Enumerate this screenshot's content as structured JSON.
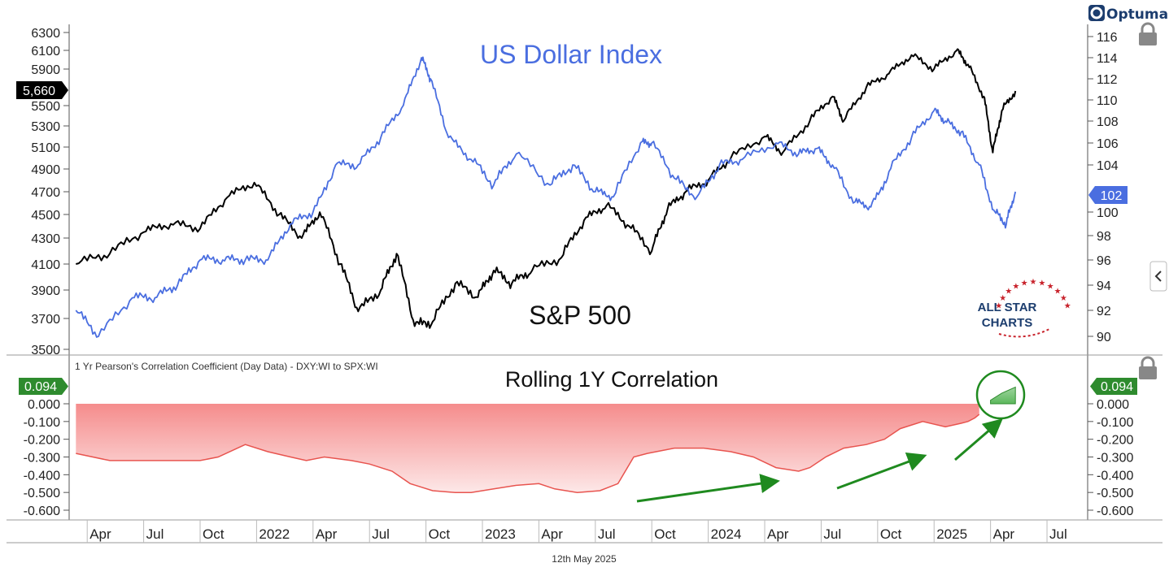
{
  "brand": {
    "name": "Optuma",
    "watermark": [
      "ALL STAR",
      "CHARTS"
    ]
  },
  "footer": {
    "date": "12th May 2025"
  },
  "colors": {
    "spx": "#000000",
    "dxy": "#4a6ee0",
    "corr_fill": "#f58c8c",
    "corr_line": "#e8544f",
    "positive": "#2e8b2e",
    "arrow": "#1f8a1f"
  },
  "icons": {
    "lock": "lock-icon",
    "collapse": "chevron-left-icon"
  },
  "x_axis": {
    "labels": [
      "Apr",
      "Jul",
      "Oct",
      "2022",
      "Apr",
      "Jul",
      "Oct",
      "2023",
      "Apr",
      "Jul",
      "Oct",
      "2024",
      "Apr",
      "Jul",
      "Oct",
      "2025",
      "Apr",
      "Jul"
    ],
    "positions_decimal_year": [
      2021.25,
      2021.5,
      2021.75,
      2022.0,
      2022.25,
      2022.5,
      2022.75,
      2023.0,
      2023.25,
      2023.5,
      2023.75,
      2024.0,
      2024.25,
      2024.5,
      2024.75,
      2025.0,
      2025.25,
      2025.5
    ]
  },
  "top_panel": {
    "left_axis": {
      "label": "S&P 500",
      "ticks": [
        "3500",
        "3700",
        "3900",
        "4100",
        "4300",
        "4500",
        "4700",
        "4900",
        "5100",
        "5300",
        "5500",
        "5900",
        "6100",
        "6300"
      ],
      "current": "5,660"
    },
    "right_axis": {
      "label": "US Dollar Index",
      "ticks": [
        "90",
        "92",
        "94",
        "96",
        "98",
        "100",
        "104",
        "106",
        "108",
        "110",
        "112",
        "114",
        "116"
      ],
      "current": "102"
    }
  },
  "bottom_panel": {
    "caption": "1 Yr Pearson's Correlation Coefficient (Day Data) - DXY:WI to SPX:WI",
    "title": "Rolling 1Y Correlation",
    "ticks": [
      "0.000",
      "-0.100",
      "-0.200",
      "-0.300",
      "-0.400",
      "-0.500",
      "-0.600"
    ],
    "current": "0.094"
  },
  "chart_data": [
    {
      "type": "line",
      "title": "US Dollar Index",
      "x_unit": "decimal year",
      "series": [
        {
          "name": "S&P 500",
          "axis": "left",
          "x": [
            2021.2,
            2021.35,
            2021.5,
            2021.62,
            2021.75,
            2021.87,
            2021.99,
            2022.1,
            2022.2,
            2022.28,
            2022.37,
            2022.45,
            2022.55,
            2022.62,
            2022.7,
            2022.78,
            2022.88,
            2022.98,
            2023.05,
            2023.13,
            2023.22,
            2023.35,
            2023.45,
            2023.55,
            2023.65,
            2023.75,
            2023.82,
            2023.9,
            2024.0,
            2024.1,
            2024.25,
            2024.33,
            2024.45,
            2024.55,
            2024.6,
            2024.7,
            2024.8,
            2024.9,
            2025.0,
            2025.1,
            2025.15,
            2025.22,
            2025.26,
            2025.3,
            2025.36
          ],
          "values": [
            4100,
            4180,
            4350,
            4420,
            4380,
            4650,
            4780,
            4500,
            4300,
            4520,
            4100,
            3750,
            3900,
            4180,
            3650,
            3680,
            3950,
            3850,
            4050,
            3950,
            4050,
            4150,
            4450,
            4580,
            4400,
            4200,
            4550,
            4700,
            4800,
            5000,
            5200,
            5050,
            5350,
            5600,
            5350,
            5700,
            5850,
            6050,
            5900,
            6100,
            5950,
            5600,
            5050,
            5450,
            5660
          ]
        },
        {
          "name": "US Dollar Index",
          "axis": "right",
          "x": [
            2021.2,
            2021.3,
            2021.45,
            2021.55,
            2021.65,
            2021.75,
            2021.85,
            2021.95,
            2022.05,
            2022.15,
            2022.25,
            2022.35,
            2022.45,
            2022.55,
            2022.65,
            2022.73,
            2022.77,
            2022.85,
            2022.95,
            2023.05,
            2023.15,
            2023.3,
            2023.4,
            2023.5,
            2023.58,
            2023.7,
            2023.75,
            2023.85,
            2023.95,
            2024.05,
            2024.15,
            2024.3,
            2024.4,
            2024.48,
            2024.55,
            2024.65,
            2024.72,
            2024.8,
            2024.9,
            2025.0,
            2025.05,
            2025.12,
            2025.2,
            2025.27,
            2025.32,
            2025.36
          ],
          "values": [
            92,
            90,
            93,
            93,
            94,
            96,
            96,
            96,
            96,
            99,
            100,
            104,
            104,
            106.5,
            109.5,
            114,
            112,
            106.5,
            104.5,
            102.5,
            105,
            102.5,
            104,
            102,
            101.5,
            106,
            106,
            103,
            101.5,
            104,
            104.5,
            106,
            105,
            105.5,
            104,
            101,
            100.5,
            103.5,
            106.5,
            109,
            108,
            107,
            104,
            100,
            99,
            102
          ]
        }
      ],
      "left_ylim": [
        3500,
        6400
      ],
      "right_ylim": [
        89,
        117
      ],
      "grid": false
    },
    {
      "type": "area",
      "title": "Rolling 1Y Correlation",
      "x_unit": "decimal year",
      "x": [
        2021.2,
        2021.35,
        2021.5,
        2021.62,
        2021.75,
        2021.83,
        2021.95,
        2022.05,
        2022.15,
        2022.22,
        2022.3,
        2022.42,
        2022.5,
        2022.6,
        2022.68,
        2022.78,
        2022.88,
        2022.95,
        2023.05,
        2023.15,
        2023.25,
        2023.32,
        2023.42,
        2023.52,
        2023.6,
        2023.67,
        2023.73,
        2023.85,
        2023.98,
        2024.1,
        2024.2,
        2024.3,
        2024.4,
        2024.45,
        2024.52,
        2024.6,
        2024.7,
        2024.78,
        2024.85,
        2024.95,
        2025.05,
        2025.12,
        2025.15,
        2025.18,
        2025.2,
        2025.25,
        2025.3,
        2025.36
      ],
      "values": [
        -0.28,
        -0.32,
        -0.32,
        -0.32,
        -0.32,
        -0.3,
        -0.23,
        -0.27,
        -0.3,
        -0.32,
        -0.3,
        -0.32,
        -0.34,
        -0.38,
        -0.45,
        -0.49,
        -0.5,
        -0.5,
        -0.48,
        -0.46,
        -0.45,
        -0.48,
        -0.5,
        -0.49,
        -0.45,
        -0.3,
        -0.28,
        -0.25,
        -0.25,
        -0.27,
        -0.3,
        -0.36,
        -0.38,
        -0.36,
        -0.3,
        -0.25,
        -0.23,
        -0.2,
        -0.14,
        -0.1,
        -0.13,
        -0.11,
        -0.1,
        -0.08,
        -0.06,
        0.02,
        0.06,
        0.094
      ],
      "ylim": [
        -0.6,
        0.1
      ],
      "grid": false
    }
  ]
}
